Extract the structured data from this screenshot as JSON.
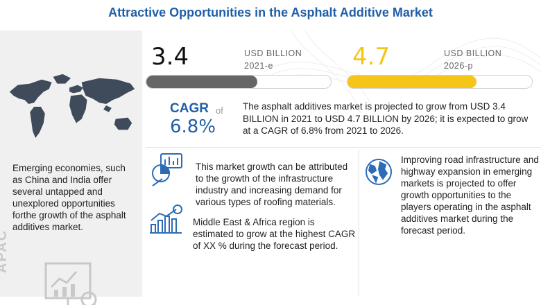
{
  "title": "Attractive Opportunities in the Asphalt Additive Market",
  "left_panel": {
    "text": "Emerging economies, such as China and India offer several untapped and unexplored opportunities forthe growth of the asphalt additives market.",
    "region_label": "APAC"
  },
  "value_2021": {
    "value": "3.4",
    "unit": "USD BILLION",
    "period": "2021-e",
    "bar_fill_percent": 60,
    "bar_color": "#666666"
  },
  "value_2026": {
    "value": "4.7",
    "unit": "USD BILLION",
    "period": "2026-p",
    "bar_fill_percent": 70,
    "bar_color": "#f5c518"
  },
  "cagr": {
    "label": "CAGR",
    "of": "of",
    "value": "6.8%"
  },
  "summary": "The asphalt additives market is projected to grow from USD 3.4 BILLION in 2021 to USD 4.7 BILLION by 2026; it is expected to grow at a CAGR of 6.8% from 2021 to 2026.",
  "blocks": {
    "growth": "This market growth can be attributed to the growth of the infrastructure industry and increasing demand for various types of roofing materials.",
    "mea": "Middle East & Africa region is estimated to grow at the highest CAGR of XX % during the forecast period.",
    "infrastructure": "Improving road infrastructure and highway expansion in emerging markets is projected to offer growth opportunities to the players operating in the asphalt additives market during the forecast period."
  },
  "colors": {
    "accent_blue": "#1f5fa8",
    "icon_blue": "#2d6cb5",
    "yellow": "#f5c518",
    "grey_bar": "#666666"
  },
  "icons": [
    "world-map-icon",
    "presentation-chart-icon",
    "analytics-icon",
    "dollar-growth-icon",
    "globe-icon"
  ]
}
